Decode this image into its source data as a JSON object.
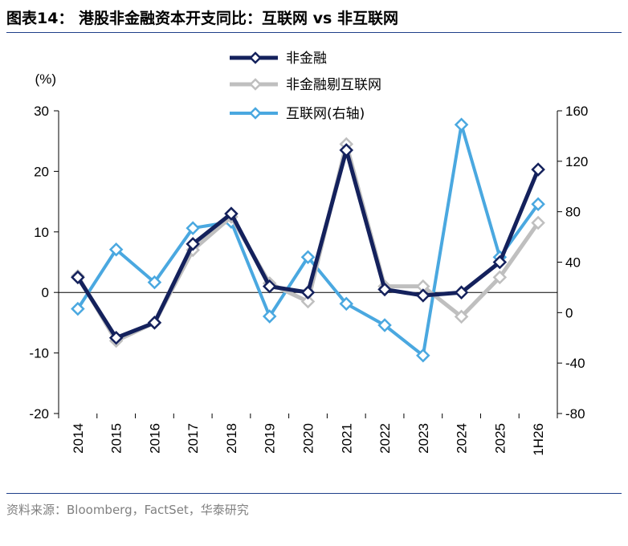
{
  "figure": {
    "title": "图表14： 港股非金融资本开支同比：互联网 vs 非互联网",
    "source": "资料来源：Bloomberg，FactSet，华泰研究"
  },
  "chart_data": {
    "type": "line",
    "x": [
      "2014",
      "2015",
      "2016",
      "2017",
      "2018",
      "2019",
      "2020",
      "2021",
      "2022",
      "2023",
      "2024",
      "2025",
      "1H26"
    ],
    "left_axis": {
      "unit_label": "(%)",
      "ylim": [
        -20,
        30
      ],
      "ticks": [
        30,
        20,
        10,
        0,
        -10,
        -20
      ]
    },
    "right_axis": {
      "ylim": [
        -80,
        160
      ],
      "ticks": [
        160,
        120,
        80,
        40,
        0,
        -40,
        -80
      ]
    },
    "grid": false,
    "legend_position": "top-center",
    "series": [
      {
        "name": "非金融",
        "axis": "left",
        "color": "#14215c",
        "values": [
          2.5,
          -7.5,
          -5,
          8,
          13,
          1,
          0,
          23.5,
          0.5,
          -0.5,
          0,
          5,
          20.3
        ]
      },
      {
        "name": "非金融剔互联网",
        "axis": "left",
        "color": "#bfbfbf",
        "values": [
          2.7,
          -8,
          -5,
          7,
          12.5,
          1.5,
          -1.5,
          24.5,
          1,
          1,
          -4,
          2.5,
          11.5
        ]
      },
      {
        "name": "互联网(右轴)",
        "axis": "right",
        "color": "#4aa8e0",
        "values": [
          3,
          50,
          24,
          67,
          72,
          -3,
          44,
          7,
          -10,
          -34,
          149,
          44,
          86
        ]
      }
    ]
  }
}
